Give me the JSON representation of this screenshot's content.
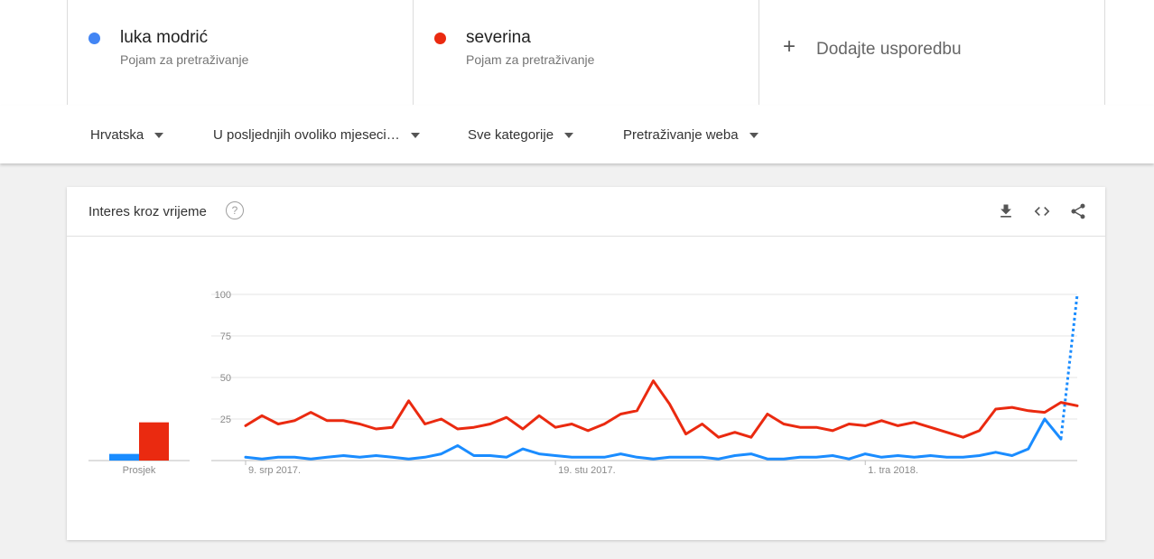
{
  "terms": [
    {
      "name": "luka modrić",
      "subtitle": "Pojam za pretraživanje",
      "color": "#4285f4"
    },
    {
      "name": "severina",
      "subtitle": "Pojam za pretraživanje",
      "color": "#ea2a10"
    }
  ],
  "add_compare": {
    "label": "Dodajte usporedbu",
    "icon": "plus-icon"
  },
  "filters": {
    "region": "Hrvatska",
    "time": "U posljednjih ovoliko mjeseci…",
    "category": "Sve kategorije",
    "search_type": "Pretraživanje weba"
  },
  "card": {
    "title": "Interes kroz vrijeme",
    "help": "?",
    "icons": [
      "download-icon",
      "embed-icon",
      "share-icon"
    ]
  },
  "chart_data": {
    "type": "line",
    "ylim": [
      0,
      100
    ],
    "yticks": [
      25,
      50,
      75,
      100
    ],
    "xtick_labels": [
      {
        "index": 0,
        "label": "9. srp 2017."
      },
      {
        "index": 19,
        "label": "19. stu 2017."
      },
      {
        "index": 38,
        "label": "1. tra 2018."
      }
    ],
    "series": [
      {
        "name": "luka modrić",
        "color": "#1a8cff",
        "values": [
          2,
          1,
          2,
          2,
          1,
          2,
          3,
          2,
          3,
          2,
          1,
          2,
          4,
          9,
          3,
          3,
          2,
          7,
          4,
          3,
          2,
          2,
          2,
          4,
          2,
          1,
          2,
          2,
          2,
          1,
          3,
          4,
          1,
          1,
          2,
          2,
          3,
          1,
          4,
          2,
          3,
          2,
          3,
          2,
          2,
          3,
          5,
          3,
          7,
          25,
          13,
          100
        ],
        "partial_from_index": 50
      },
      {
        "name": "severina",
        "color": "#ea2a10",
        "values": [
          21,
          27,
          22,
          24,
          29,
          24,
          24,
          22,
          19,
          20,
          36,
          22,
          25,
          19,
          20,
          22,
          26,
          19,
          27,
          20,
          22,
          18,
          22,
          28,
          30,
          48,
          34,
          16,
          22,
          14,
          17,
          14,
          28,
          22,
          20,
          20,
          18,
          22,
          21,
          24,
          21,
          23,
          20,
          17,
          14,
          18,
          31,
          32,
          30,
          29,
          35,
          33
        ]
      }
    ],
    "average": {
      "label": "Prosjek",
      "bars": [
        {
          "series": "luka modrić",
          "value": 4,
          "color": "#1a8cff"
        },
        {
          "series": "severina",
          "value": 23,
          "color": "#ea2a10"
        }
      ]
    }
  }
}
